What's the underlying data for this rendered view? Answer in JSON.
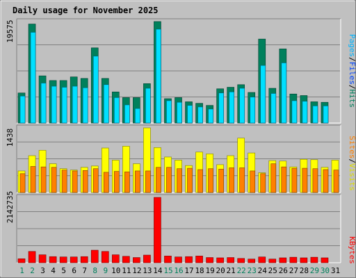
{
  "chart_data": {
    "type": "bar",
    "title": "Daily usage for November 2025",
    "categories": [
      "1",
      "2",
      "3",
      "4",
      "5",
      "6",
      "7",
      "8",
      "9",
      "10",
      "11",
      "12",
      "13",
      "14",
      "15",
      "16",
      "17",
      "18",
      "19",
      "20",
      "21",
      "22",
      "23",
      "24",
      "25",
      "26",
      "27",
      "28",
      "29",
      "30",
      "31"
    ],
    "weekend_days": [
      1,
      2,
      8,
      9,
      15,
      16,
      22,
      23,
      29,
      30
    ],
    "panels": [
      {
        "name": "pages-files-hits",
        "max_label": "19575",
        "ymax": 19575,
        "series": [
          {
            "name": "Hits",
            "color": "#00805c",
            "values": [
              5800,
              19100,
              9100,
              8200,
              8200,
              8900,
              8600,
              14500,
              8600,
              6000,
              4900,
              4900,
              7600,
              19575,
              4700,
              4900,
              4100,
              3800,
              3400,
              6600,
              6900,
              7400,
              5900,
              16200,
              6700,
              14300,
              5600,
              5300,
              4100,
              4000,
              0
            ]
          },
          {
            "name": "Files",
            "color": "#00e0ff",
            "values": [
              5200,
              17500,
              7700,
              7100,
              6900,
              7100,
              6800,
              12900,
              7400,
              4900,
              3500,
              2800,
              6700,
              18100,
              4300,
              4000,
              3400,
              3100,
              2700,
              5800,
              6000,
              6700,
              5000,
              11100,
              5700,
              11600,
              4300,
              4200,
              3300,
              3300,
              0
            ]
          },
          {
            "name": "Pages",
            "color": "#0044ff",
            "values": [
              0,
              0,
              0,
              0,
              0,
              0,
              0,
              0,
              0,
              0,
              0,
              0,
              0,
              0,
              0,
              0,
              0,
              0,
              0,
              0,
              0,
              0,
              0,
              0,
              0,
              0,
              0,
              0,
              0,
              0,
              0
            ]
          }
        ]
      },
      {
        "name": "visits-sites",
        "max_label": "1438",
        "ymax": 1438,
        "series": [
          {
            "name": "Visits",
            "color": "#ffff00",
            "values": [
              480,
              820,
              940,
              640,
              530,
              500,
              560,
              590,
              990,
              720,
              1030,
              640,
              1438,
              1000,
              790,
              720,
              600,
              900,
              860,
              620,
              820,
              1210,
              880,
              440,
              710,
              700,
              570,
              740,
              730,
              560,
              720
            ]
          },
          {
            "name": "Sites",
            "color": "#ff8000",
            "values": [
              420,
              580,
              570,
              560,
              500,
              480,
              490,
              530,
              450,
              470,
              460,
              480,
              480,
              560,
              560,
              530,
              540,
              510,
              530,
              520,
              550,
              550,
              480,
              420,
              640,
              570,
              540,
              540,
              530,
              510,
              500
            ]
          }
        ]
      },
      {
        "name": "kbytes",
        "max_label": "2142735",
        "ymax": 2142735,
        "series": [
          {
            "name": "KBytes",
            "color": "#ff0000",
            "values": [
              130000,
              370000,
              260000,
              200000,
              190000,
              190000,
              200000,
              410000,
              370000,
              260000,
              210000,
              170000,
              250000,
              2142735,
              220000,
              190000,
              200000,
              220000,
              170000,
              160000,
              170000,
              140000,
              120000,
              190000,
              120000,
              160000,
              180000,
              160000,
              180000,
              160000,
              0
            ]
          }
        ]
      }
    ],
    "legend": {
      "top": [
        {
          "text": "Pages",
          "color": "#00b4ff"
        },
        {
          "text": "/",
          "color": "#000000"
        },
        {
          "text": "Files",
          "color": "#0044ff"
        },
        {
          "text": "/",
          "color": "#000000"
        },
        {
          "text": "Hits",
          "color": "#00805c"
        }
      ],
      "mid": [
        {
          "text": "Sites",
          "color": "#ff8000"
        },
        {
          "text": "/",
          "color": "#000000"
        },
        {
          "text": "Visits",
          "color": "#dcdc00"
        }
      ],
      "bottom": [
        {
          "text": "KBytes",
          "color": "#ff0000"
        }
      ]
    },
    "colors": {
      "background": "#c0c0c0",
      "plot_bg": "#c0c0c0",
      "title": "#0000cc",
      "weekday_label": "#000000",
      "weekend_label": "#00805c"
    }
  }
}
